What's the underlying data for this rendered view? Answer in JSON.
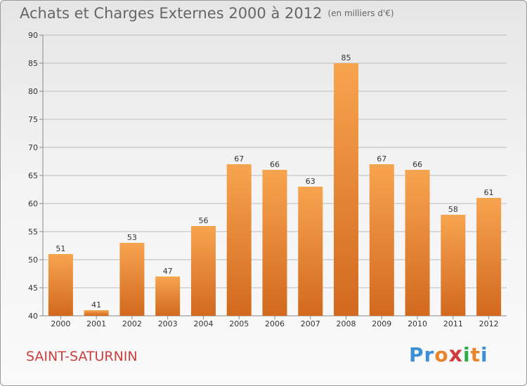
{
  "header": {
    "title": "Achats et Charges Externes 2000 à 2012",
    "unit": "(en milliers d'€)"
  },
  "footer": {
    "town": "SAINT-SATURNIN",
    "logo": [
      "P",
      "r",
      "o",
      "x",
      "i",
      "t",
      "i"
    ],
    "logo_colors": [
      "#3d8fd6",
      "#3d8fd6",
      "#e8852a",
      "#d03c3c",
      "#2faa46",
      "#e8852a",
      "#3d8fd6"
    ]
  },
  "colors": {
    "bar_top": "#f7a44f",
    "bar_bottom": "#d2691e",
    "grid": "#bbbbbb"
  },
  "chart_data": {
    "type": "bar",
    "title": "Achats et Charges Externes 2000 à 2012",
    "xlabel": "",
    "ylabel": "",
    "categories": [
      "2000",
      "2001",
      "2002",
      "2003",
      "2004",
      "2005",
      "2006",
      "2007",
      "2008",
      "2009",
      "2010",
      "2011",
      "2012"
    ],
    "values": [
      51,
      41,
      53,
      47,
      56,
      67,
      66,
      63,
      85,
      67,
      66,
      58,
      61
    ],
    "ylim": [
      40,
      90
    ],
    "yticks": [
      40,
      45,
      50,
      55,
      60,
      65,
      70,
      75,
      80,
      85,
      90
    ],
    "grid": true,
    "legend": "none"
  }
}
